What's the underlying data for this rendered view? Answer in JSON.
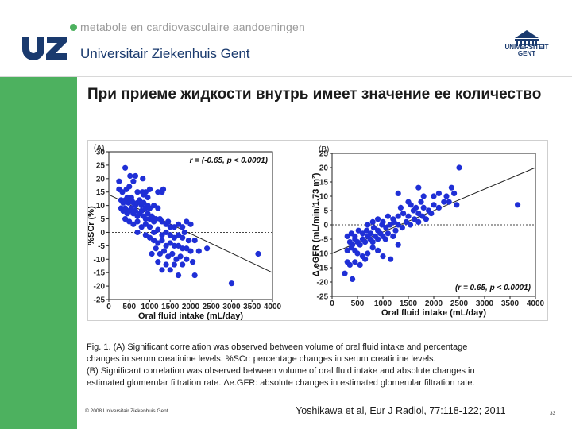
{
  "header": {
    "tagline": "metabole en cardiovasculaire aandoeningen",
    "logo_text": "UZ",
    "institution": "Universitair Ziekenhuis Gent",
    "partner_logo_text": "UNIVERSITEIT\nGENT"
  },
  "slide": {
    "title": "При приеме жидкости внутрь имеет значение ее количество"
  },
  "chart_data": [
    {
      "type": "scatter",
      "panel_label": "(A)",
      "xlabel": "Oral fluid intake (mL/day)",
      "ylabel": "%SCr (%)",
      "xlim": [
        0,
        4000
      ],
      "ylim": [
        -25,
        30
      ],
      "xticks": [
        0,
        500,
        1000,
        1500,
        2000,
        2500,
        3000,
        3500,
        4000
      ],
      "yticks": [
        -25,
        -20,
        -15,
        -10,
        -5,
        0,
        5,
        10,
        15,
        20,
        25,
        30
      ],
      "annotation": "r = (-0.65, p < 0.0001)",
      "annotation_position": "top-right",
      "reference_line_y": 0,
      "regression": {
        "x": [
          0,
          4000
        ],
        "y": [
          14,
          -15
        ]
      },
      "marker_color": "#1f2fd6",
      "points": [
        [
          250,
          19
        ],
        [
          400,
          24
        ],
        [
          520,
          21
        ],
        [
          600,
          19
        ],
        [
          650,
          21
        ],
        [
          830,
          20
        ],
        [
          250,
          16
        ],
        [
          330,
          15
        ],
        [
          430,
          16
        ],
        [
          500,
          17
        ],
        [
          700,
          15
        ],
        [
          820,
          15
        ],
        [
          900,
          15
        ],
        [
          1000,
          16
        ],
        [
          1200,
          15
        ],
        [
          1300,
          15
        ],
        [
          1330,
          16
        ],
        [
          550,
          13
        ],
        [
          850,
          14
        ],
        [
          950,
          13
        ],
        [
          300,
          12
        ],
        [
          350,
          11
        ],
        [
          400,
          12
        ],
        [
          450,
          13
        ],
        [
          480,
          11
        ],
        [
          520,
          12
        ],
        [
          560,
          12
        ],
        [
          600,
          11
        ],
        [
          650,
          10
        ],
        [
          700,
          11
        ],
        [
          750,
          12
        ],
        [
          800,
          10
        ],
        [
          850,
          11
        ],
        [
          900,
          9
        ],
        [
          950,
          10
        ],
        [
          1000,
          9
        ],
        [
          1100,
          10
        ],
        [
          1200,
          9
        ],
        [
          300,
          9
        ],
        [
          350,
          8
        ],
        [
          400,
          9
        ],
        [
          450,
          7
        ],
        [
          500,
          8
        ],
        [
          550,
          9
        ],
        [
          600,
          7
        ],
        [
          650,
          8
        ],
        [
          700,
          6
        ],
        [
          750,
          7
        ],
        [
          800,
          8
        ],
        [
          850,
          6
        ],
        [
          900,
          5
        ],
        [
          950,
          7
        ],
        [
          1000,
          5
        ],
        [
          1050,
          6
        ],
        [
          1100,
          4
        ],
        [
          1150,
          5
        ],
        [
          1250,
          5
        ],
        [
          1300,
          4
        ],
        [
          1400,
          3
        ],
        [
          1450,
          4
        ],
        [
          1500,
          2
        ],
        [
          1600,
          2
        ],
        [
          1700,
          3
        ],
        [
          1800,
          2
        ],
        [
          1900,
          4
        ],
        [
          2000,
          3
        ],
        [
          400,
          5
        ],
        [
          500,
          4
        ],
        [
          600,
          3
        ],
        [
          700,
          4
        ],
        [
          800,
          2
        ],
        [
          900,
          3
        ],
        [
          1000,
          2
        ],
        [
          1100,
          0
        ],
        [
          1200,
          1
        ],
        [
          1300,
          -1
        ],
        [
          1400,
          0
        ],
        [
          1500,
          -1
        ],
        [
          1600,
          -2
        ],
        [
          1700,
          -1
        ],
        [
          1800,
          -2
        ],
        [
          1850,
          0
        ],
        [
          1950,
          -3
        ],
        [
          2100,
          -3
        ],
        [
          700,
          0
        ],
        [
          900,
          -1
        ],
        [
          1000,
          -2
        ],
        [
          1100,
          -3
        ],
        [
          1200,
          -4
        ],
        [
          1300,
          -3
        ],
        [
          1400,
          -5
        ],
        [
          1500,
          -4
        ],
        [
          1600,
          -5
        ],
        [
          1700,
          -5
        ],
        [
          1800,
          -6
        ],
        [
          1900,
          -6
        ],
        [
          2000,
          -7
        ],
        [
          2200,
          -7
        ],
        [
          2400,
          -6
        ],
        [
          1150,
          -6
        ],
        [
          1250,
          -8
        ],
        [
          1350,
          -7
        ],
        [
          1450,
          -9
        ],
        [
          1550,
          -8
        ],
        [
          1650,
          -10
        ],
        [
          1750,
          -9
        ],
        [
          1900,
          -10
        ],
        [
          2050,
          -11
        ],
        [
          1050,
          -8
        ],
        [
          1200,
          -11
        ],
        [
          1400,
          -12
        ],
        [
          1600,
          -12
        ],
        [
          1800,
          -12
        ],
        [
          1300,
          -14
        ],
        [
          1500,
          -14
        ],
        [
          2100,
          -16
        ],
        [
          1700,
          -16
        ],
        [
          3000,
          -19
        ],
        [
          3650,
          -8
        ]
      ]
    },
    {
      "type": "scatter",
      "panel_label": "(B)",
      "xlabel": "Oral fluid intake (mL/day)",
      "ylabel": "Δ eGFR (mL/min/1.73 m²)",
      "xlim": [
        0,
        4000
      ],
      "ylim": [
        -25,
        25
      ],
      "xticks": [
        0,
        500,
        1000,
        1500,
        2000,
        2500,
        3000,
        3500,
        4000
      ],
      "yticks": [
        -25,
        -20,
        -15,
        -10,
        -5,
        0,
        5,
        10,
        15,
        20,
        25
      ],
      "annotation": "(r = 0.65, p < 0.0001)",
      "annotation_position": "bottom-right",
      "reference_line_y": 0,
      "regression": {
        "x": [
          0,
          4000
        ],
        "y": [
          -10,
          20
        ]
      },
      "marker_color": "#1f2fd6",
      "points": [
        [
          250,
          -17
        ],
        [
          400,
          -19
        ],
        [
          300,
          -13
        ],
        [
          350,
          -14
        ],
        [
          450,
          -13
        ],
        [
          550,
          -14
        ],
        [
          650,
          -12
        ],
        [
          300,
          -9
        ],
        [
          380,
          -8
        ],
        [
          450,
          -9
        ],
        [
          500,
          -10
        ],
        [
          600,
          -11
        ],
        [
          700,
          -10
        ],
        [
          800,
          -8
        ],
        [
          900,
          -9
        ],
        [
          1000,
          -11
        ],
        [
          1150,
          -12
        ],
        [
          1300,
          -7
        ],
        [
          350,
          -6
        ],
        [
          400,
          -7
        ],
        [
          450,
          -5
        ],
        [
          500,
          -6
        ],
        [
          550,
          -7
        ],
        [
          600,
          -5
        ],
        [
          650,
          -6
        ],
        [
          700,
          -4
        ],
        [
          750,
          -5
        ],
        [
          800,
          -6
        ],
        [
          850,
          -4
        ],
        [
          900,
          -5
        ],
        [
          950,
          -3
        ],
        [
          1000,
          -4
        ],
        [
          1050,
          -5
        ],
        [
          1100,
          -3
        ],
        [
          1200,
          -4
        ],
        [
          1250,
          -2
        ],
        [
          300,
          -4
        ],
        [
          380,
          -3
        ],
        [
          450,
          -4
        ],
        [
          520,
          -2
        ],
        [
          600,
          -3
        ],
        [
          680,
          -2
        ],
        [
          760,
          -3
        ],
        [
          820,
          -1
        ],
        [
          900,
          -2
        ],
        [
          980,
          0
        ],
        [
          1060,
          -1
        ],
        [
          1140,
          0
        ],
        [
          1220,
          1
        ],
        [
          1300,
          0
        ],
        [
          1380,
          -1
        ],
        [
          1460,
          1
        ],
        [
          1540,
          0
        ],
        [
          1620,
          2
        ],
        [
          1700,
          1
        ],
        [
          1780,
          3
        ],
        [
          1850,
          2
        ],
        [
          1950,
          4
        ],
        [
          700,
          0
        ],
        [
          800,
          1
        ],
        [
          900,
          2
        ],
        [
          1000,
          1
        ],
        [
          1100,
          3
        ],
        [
          1200,
          2
        ],
        [
          1300,
          3
        ],
        [
          1400,
          4
        ],
        [
          1500,
          3
        ],
        [
          1600,
          5
        ],
        [
          1700,
          4
        ],
        [
          1800,
          6
        ],
        [
          1900,
          5
        ],
        [
          2000,
          7
        ],
        [
          2100,
          6
        ],
        [
          2200,
          8
        ],
        [
          2300,
          8
        ],
        [
          2450,
          7
        ],
        [
          1350,
          6
        ],
        [
          1550,
          7
        ],
        [
          1650,
          6
        ],
        [
          1750,
          8
        ],
        [
          2000,
          10
        ],
        [
          2100,
          11
        ],
        [
          1800,
          10
        ],
        [
          2250,
          10
        ],
        [
          1500,
          8
        ],
        [
          2400,
          11
        ],
        [
          2350,
          13
        ],
        [
          1700,
          13
        ],
        [
          1300,
          11
        ],
        [
          2500,
          20
        ],
        [
          3650,
          7
        ]
      ]
    }
  ],
  "caption": {
    "lines": [
      "Fig. 1. (A) Significant correlation was observed between volume of oral fluid intake and percentage",
      "changes in serum creatinine levels. %SCr: percentage changes in serum creatinine levels.",
      "(B) Significant correlation was observed between volume of oral fluid intake and absolute changes in",
      "estimated glomerular filtration rate. Δe.GFR: absolute changes in estimated glomerular filtration rate."
    ]
  },
  "footer": {
    "copyright": "© 2008 Universitair Ziekenhuis Gent",
    "citation": "Yoshikawa et al, Eur J Radiol, 77:118-122; 2011",
    "page_number": "33"
  },
  "colors": {
    "brand_green": "#4db15f",
    "brand_navy": "#1a3a6e",
    "marker_blue": "#1f2fd6"
  }
}
